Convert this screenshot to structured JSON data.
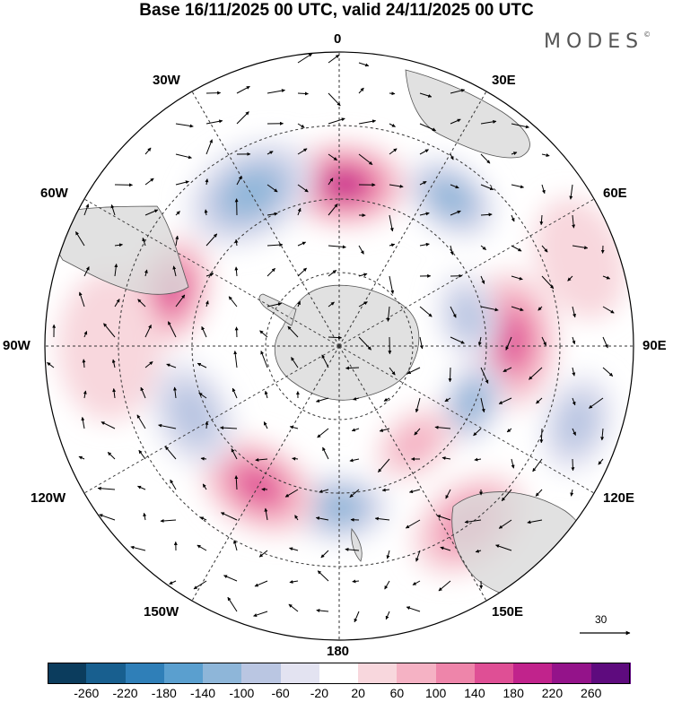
{
  "title": "Base 16/11/2025 00 UTC, valid 24/11/2025 00 UTC",
  "brand": "MODES",
  "brand_mark": "©",
  "longitudes": {
    "lon_0": "0",
    "lon_30e": "30E",
    "lon_60e": "60E",
    "lon_90e": "90E",
    "lon_120e": "120E",
    "lon_150e": "150E",
    "lon_180": "180",
    "lon_150w": "150W",
    "lon_120w": "120W",
    "lon_90w": "90W",
    "lon_60w": "60W",
    "lon_30w": "30W"
  },
  "reference_vector": {
    "label": "30"
  },
  "colorbar": {
    "ticks": [
      "-260",
      "-220",
      "-180",
      "-140",
      "-100",
      "-60",
      "-20",
      "20",
      "60",
      "100",
      "140",
      "180",
      "220",
      "260"
    ],
    "colors": [
      "#0b3c5d",
      "#185f8f",
      "#2f7fb8",
      "#5a9fcf",
      "#8eb6d9",
      "#bac6e2",
      "#e3e3f1",
      "#ffffff",
      "#f8d7dd",
      "#f5b2c4",
      "#ee85aa",
      "#df4f95",
      "#c1238c",
      "#94138a",
      "#5e0b7e"
    ]
  },
  "anomaly_features": [
    {
      "lon": 2,
      "dist": 0.55,
      "value": 180,
      "size": 1.0
    },
    {
      "lon": -30,
      "dist": 0.6,
      "value": -100,
      "size": 1.1
    },
    {
      "lon": 37,
      "dist": 0.63,
      "value": -120,
      "size": 0.8
    },
    {
      "lon": -72,
      "dist": 0.6,
      "value": 140,
      "size": 0.9
    },
    {
      "lon": 88,
      "dist": 0.58,
      "value": 150,
      "size": 1.1
    },
    {
      "lon": 77,
      "dist": 0.45,
      "value": -80,
      "size": 0.7
    },
    {
      "lon": 113,
      "dist": 0.49,
      "value": -110,
      "size": 0.7
    },
    {
      "lon": 108,
      "dist": 0.85,
      "value": -90,
      "size": 0.8
    },
    {
      "lon": 144,
      "dist": 0.75,
      "value": 130,
      "size": 1.0
    },
    {
      "lon": 142,
      "dist": 0.42,
      "value": 80,
      "size": 0.7
    },
    {
      "lon": 180,
      "dist": 0.55,
      "value": -100,
      "size": 0.8
    },
    {
      "lon": -150,
      "dist": 0.55,
      "value": 150,
      "size": 1.0
    },
    {
      "lon": -115,
      "dist": 0.55,
      "value": -80,
      "size": 0.9
    },
    {
      "lon": -90,
      "dist": 0.78,
      "value": 40,
      "size": 1.2
    },
    {
      "lon": 70,
      "dist": 0.87,
      "value": 40,
      "size": 1.0
    }
  ]
}
